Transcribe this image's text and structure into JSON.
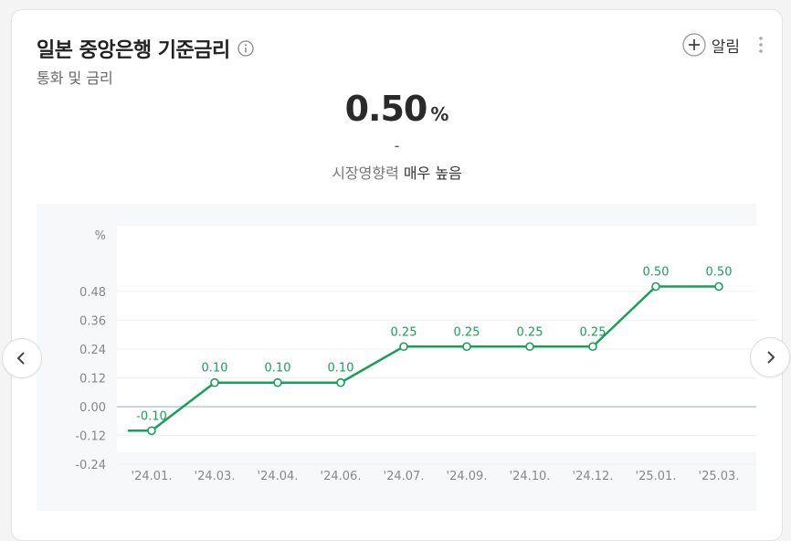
{
  "header": {
    "title": "일본 중앙은행 기준금리",
    "subtitle": "통화 및 금리",
    "alarm_label": "알림"
  },
  "summary": {
    "value": "0.50",
    "unit": "%",
    "change": "-",
    "impact_label": "시장영향력",
    "impact_value": "매우 높음"
  },
  "colors": {
    "line": "#18a058",
    "zero_line": "#b8c8d8",
    "grid": "#eef0f2"
  },
  "chart_data": {
    "type": "line",
    "categories": [
      "'24.01.",
      "'24.03.",
      "'24.04.",
      "'24.06.",
      "'24.07.",
      "'24.09.",
      "'24.10.",
      "'24.12.",
      "'25.01.",
      "'25.03."
    ],
    "values": [
      -0.1,
      0.1,
      0.1,
      0.1,
      0.25,
      0.25,
      0.25,
      0.25,
      0.5,
      0.5
    ],
    "data_labels": [
      "-0.10",
      "0.10",
      "0.10",
      "0.10",
      "0.25",
      "0.25",
      "0.25",
      "0.25",
      "0.50",
      "0.50"
    ],
    "y_ticks": [
      0.48,
      0.36,
      0.24,
      0.12,
      0.0,
      -0.12,
      -0.24
    ],
    "y_tick_labels": [
      "0.48",
      "0.36",
      "0.24",
      "0.12",
      "0.00",
      "-0.12",
      "-0.24"
    ],
    "ylabel": "%",
    "ylim": [
      -0.24,
      0.6
    ],
    "grid": true
  }
}
